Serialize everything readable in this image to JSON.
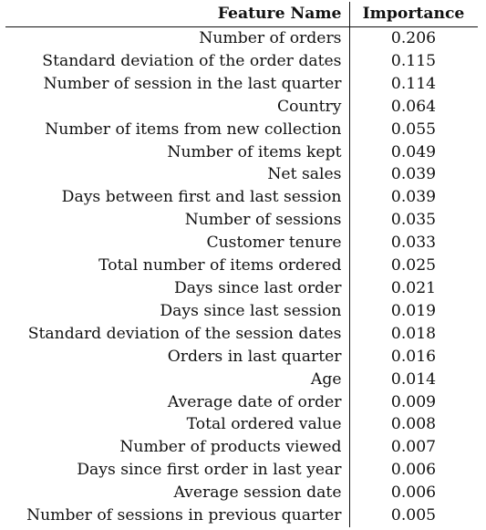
{
  "table": {
    "headers": {
      "feature": "Feature Name",
      "importance": "Importance"
    },
    "rows": [
      {
        "feature": "Number of orders",
        "importance": "0.206"
      },
      {
        "feature": "Standard deviation of the order dates",
        "importance": "0.115"
      },
      {
        "feature": "Number of session in the last quarter",
        "importance": "0.114"
      },
      {
        "feature": "Country",
        "importance": "0.064"
      },
      {
        "feature": "Number of items from new collection",
        "importance": "0.055"
      },
      {
        "feature": "Number of items kept",
        "importance": "0.049"
      },
      {
        "feature": "Net sales",
        "importance": "0.039"
      },
      {
        "feature": "Days between first and last session",
        "importance": "0.039"
      },
      {
        "feature": "Number of sessions",
        "importance": "0.035"
      },
      {
        "feature": "Customer tenure",
        "importance": "0.033"
      },
      {
        "feature": "Total number of items ordered",
        "importance": "0.025"
      },
      {
        "feature": "Days since last order",
        "importance": "0.021"
      },
      {
        "feature": "Days since last session",
        "importance": "0.019"
      },
      {
        "feature": "Standard deviation of the session dates",
        "importance": "0.018"
      },
      {
        "feature": "Orders in last quarter",
        "importance": "0.016"
      },
      {
        "feature": "Age",
        "importance": "0.014"
      },
      {
        "feature": "Average date of order",
        "importance": "0.009"
      },
      {
        "feature": "Total ordered value",
        "importance": "0.008"
      },
      {
        "feature": "Number of products viewed",
        "importance": "0.007"
      },
      {
        "feature": "Days since first order in last year",
        "importance": "0.006"
      },
      {
        "feature": "Average session date",
        "importance": "0.006"
      },
      {
        "feature": "Number of sessions in previous quarter",
        "importance": "0.005"
      }
    ]
  }
}
